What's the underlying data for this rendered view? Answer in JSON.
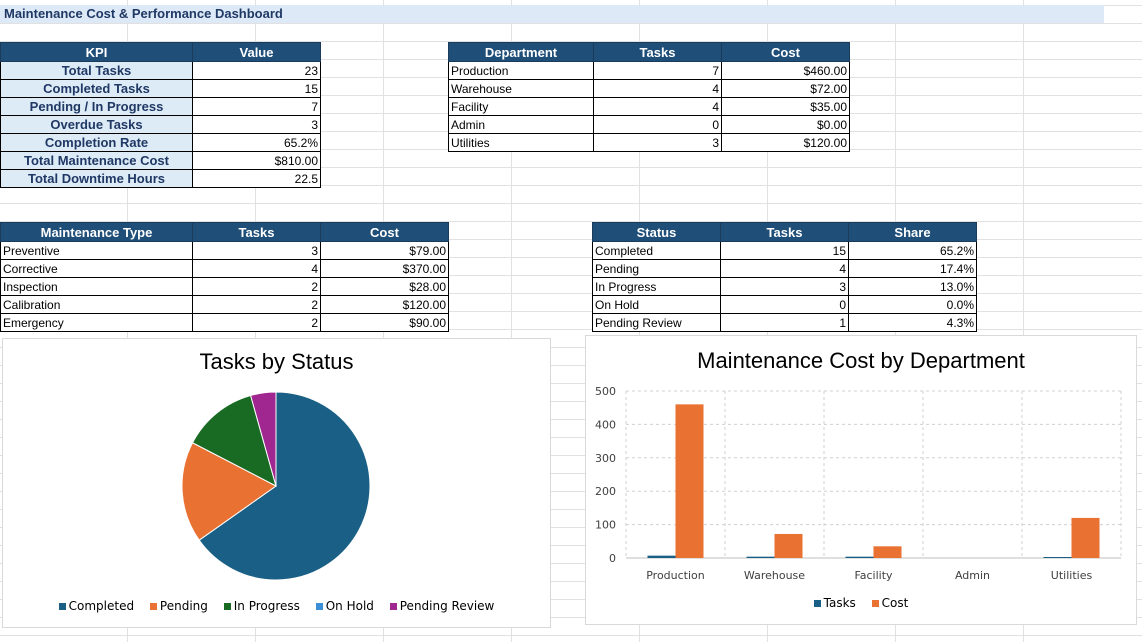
{
  "title": "Maintenance Cost & Performance Dashboard",
  "kpi_table": {
    "headers": [
      "KPI",
      "Value"
    ],
    "rows": [
      [
        "Total Tasks",
        "23"
      ],
      [
        "Completed Tasks",
        "15"
      ],
      [
        "Pending / In Progress",
        "7"
      ],
      [
        "Overdue Tasks",
        "3"
      ],
      [
        "Completion Rate",
        "65.2%"
      ],
      [
        "Total Maintenance Cost",
        "$810.00"
      ],
      [
        "Total Downtime Hours",
        "22.5"
      ]
    ]
  },
  "dept_table": {
    "headers": [
      "Department",
      "Tasks",
      "Cost"
    ],
    "rows": [
      [
        "Production",
        "7",
        "$460.00"
      ],
      [
        "Warehouse",
        "4",
        "$72.00"
      ],
      [
        "Facility",
        "4",
        "$35.00"
      ],
      [
        "Admin",
        "0",
        "$0.00"
      ],
      [
        "Utilities",
        "3",
        "$120.00"
      ]
    ]
  },
  "type_table": {
    "headers": [
      "Maintenance Type",
      "Tasks",
      "Cost"
    ],
    "rows": [
      [
        "Preventive",
        "3",
        "$79.00"
      ],
      [
        "Corrective",
        "4",
        "$370.00"
      ],
      [
        "Inspection",
        "2",
        "$28.00"
      ],
      [
        "Calibration",
        "2",
        "$120.00"
      ],
      [
        "Emergency",
        "2",
        "$90.00"
      ]
    ]
  },
  "status_table": {
    "headers": [
      "Status",
      "Tasks",
      "Share"
    ],
    "rows": [
      [
        "Completed",
        "15",
        "65.2%"
      ],
      [
        "Pending",
        "4",
        "17.4%"
      ],
      [
        "In Progress",
        "3",
        "13.0%"
      ],
      [
        "On Hold",
        "0",
        "0.0%"
      ],
      [
        "Pending Review",
        "1",
        "4.3%"
      ]
    ]
  },
  "colors": {
    "header_fill": "#1f4e78",
    "kpi_fill": "#ddebf7",
    "title_fill": "#dde9f6",
    "completed": "#1a5f85",
    "pending": "#e97132",
    "in_progress": "#196b24",
    "on_hold": "#3a8fd6",
    "pending_review": "#a0278f",
    "tasks": "#1a5f85",
    "cost": "#e97132"
  },
  "chart_data": [
    {
      "type": "pie",
      "title": "Tasks by Status",
      "categories": [
        "Completed",
        "Pending",
        "In Progress",
        "On Hold",
        "Pending Review"
      ],
      "values": [
        15,
        4,
        3,
        0,
        1
      ],
      "colors": [
        "#1a5f85",
        "#e97132",
        "#196b24",
        "#3a8fd6",
        "#a0278f"
      ],
      "legend": "bottom"
    },
    {
      "type": "bar",
      "title": "Maintenance Cost by Department",
      "categories": [
        "Production",
        "Warehouse",
        "Facility",
        "Admin",
        "Utilities"
      ],
      "series": [
        {
          "name": "Tasks",
          "values": [
            7,
            4,
            4,
            0,
            3
          ],
          "color": "#1a5f85"
        },
        {
          "name": "Cost",
          "values": [
            460,
            72,
            35,
            0,
            120
          ],
          "color": "#e97132"
        }
      ],
      "ylim": [
        0,
        500
      ],
      "yticks": [
        "0",
        "100",
        "200",
        "300",
        "400",
        "500"
      ],
      "grid": true,
      "legend": "bottom"
    }
  ]
}
